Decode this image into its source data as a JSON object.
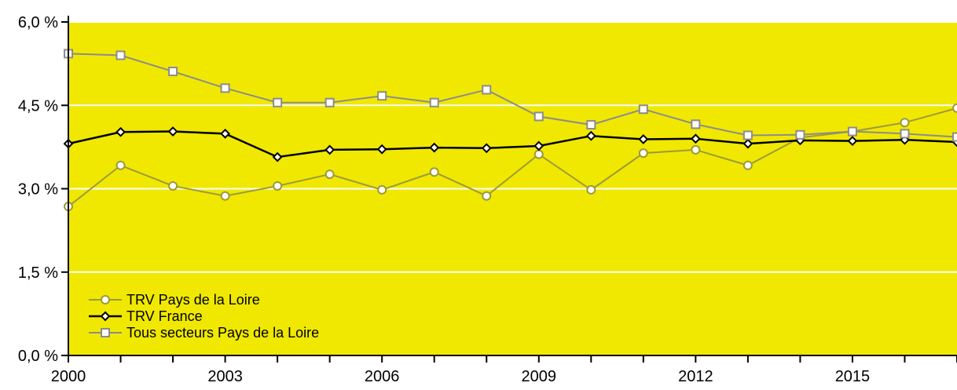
{
  "chart_data": {
    "type": "line",
    "title": "",
    "xlabel": "",
    "ylabel": "",
    "x": [
      2000,
      2001,
      2002,
      2003,
      2004,
      2005,
      2006,
      2007,
      2008,
      2009,
      2010,
      2011,
      2012,
      2013,
      2014,
      2015,
      2016,
      2017
    ],
    "xlim": [
      2000,
      2017
    ],
    "ylim": [
      0,
      6
    ],
    "x_ticks": [
      2000,
      2003,
      2006,
      2009,
      2012,
      2015
    ],
    "x_tick_labels": [
      "2000",
      "2003",
      "2006",
      "2009",
      "2012",
      "2015"
    ],
    "y_ticks": [
      0,
      1.5,
      3,
      4.5,
      6
    ],
    "y_tick_labels": [
      "0,0 %",
      "1,5 %",
      "3,0 %",
      "4,5 %",
      "6,0 %"
    ],
    "grid": "horizontal",
    "legend_position": "bottom-left",
    "background_color": "#F0E800",
    "series": [
      {
        "name": "TRV Pays de la Loire",
        "color": "#9C9A3C",
        "marker": "circle",
        "values": [
          2.68,
          3.42,
          3.05,
          2.87,
          3.05,
          3.26,
          2.98,
          3.3,
          2.87,
          3.62,
          2.98,
          3.64,
          3.7,
          3.42,
          3.92,
          4.03,
          4.19,
          4.45
        ]
      },
      {
        "name": "TRV France",
        "color": "#000000",
        "marker": "diamond",
        "values": [
          3.81,
          4.02,
          4.03,
          3.99,
          3.57,
          3.7,
          3.71,
          3.74,
          3.73,
          3.77,
          3.95,
          3.89,
          3.9,
          3.81,
          3.87,
          3.86,
          3.88,
          3.84
        ]
      },
      {
        "name": "Tous secteurs Pays de la Loire",
        "color": "#8C8C8C",
        "marker": "square",
        "values": [
          5.43,
          5.4,
          5.11,
          4.81,
          4.55,
          4.55,
          4.67,
          4.55,
          4.78,
          4.3,
          4.15,
          4.43,
          4.16,
          3.96,
          3.97,
          4.03,
          3.99,
          3.93
        ]
      }
    ]
  }
}
